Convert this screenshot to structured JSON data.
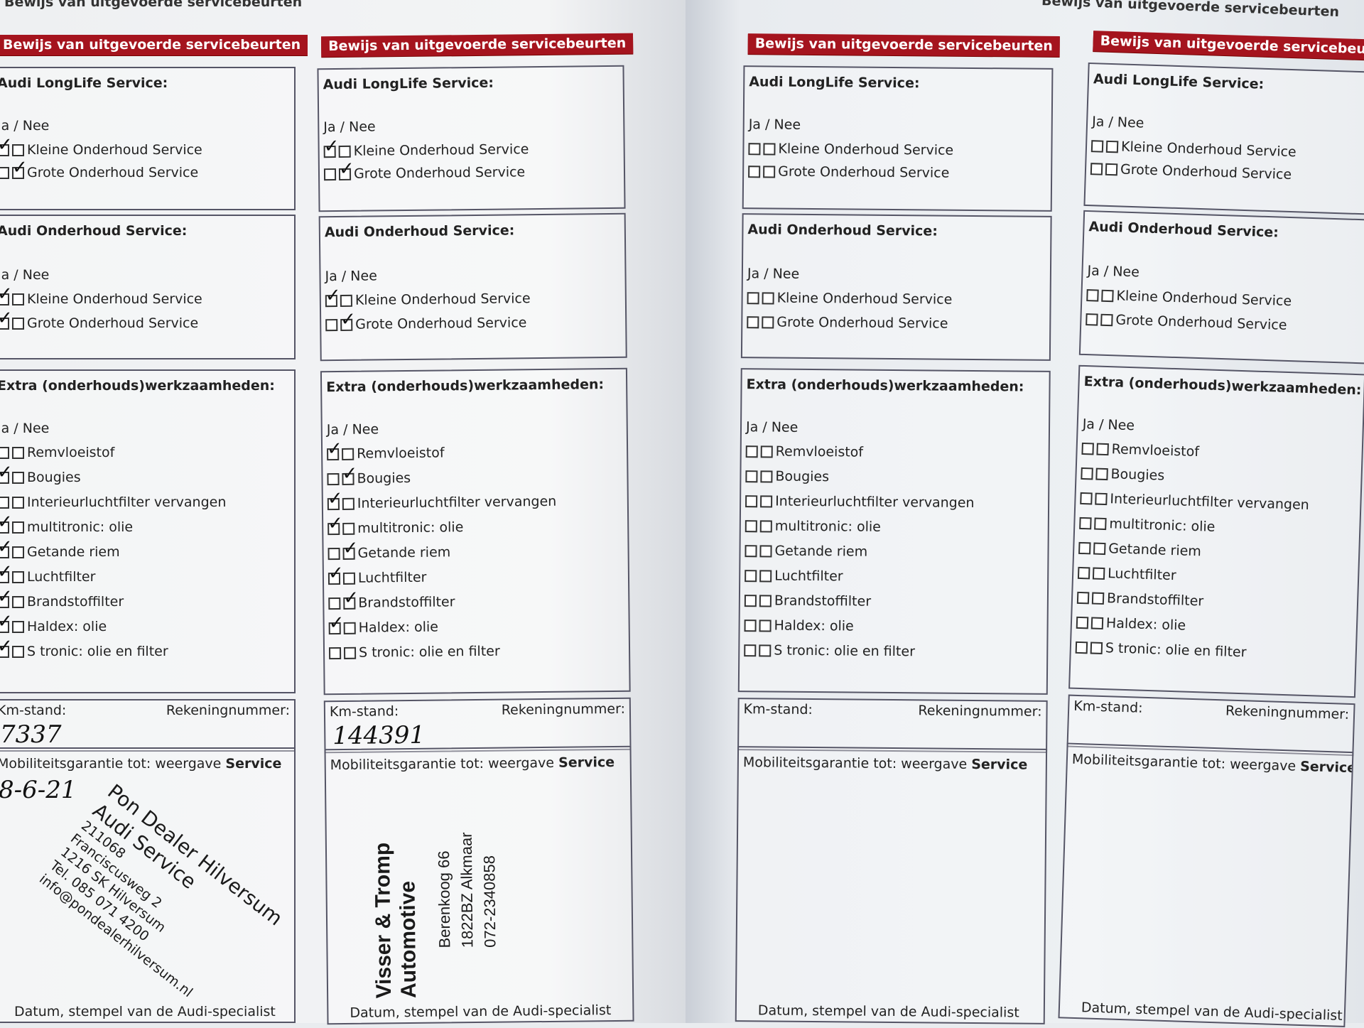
{
  "running_header": "Bewijs van uitgevoerde servicebeurten",
  "labels": {
    "section_header": "Bewijs van uitgevoerde servicebeurten",
    "longlife": "Audi LongLife Service:",
    "onderhoud": "Audi Onderhoud Service:",
    "extra": "Extra (onderhouds)werkzaamheden:",
    "ja_nee": "Ja / Nee",
    "kleine": "Kleine Onderhoud Service",
    "grote": "Grote Onderhoud Service",
    "extra_items": [
      "Remvloeistof",
      "Bougies",
      "Interieurluchtfilter vervangen",
      "multitronic: olie",
      "Getande riem",
      "Luchtfilter",
      "Brandstoffilter",
      "Haldex: olie",
      "S tronic: olie en filter"
    ],
    "km": "Km-stand:",
    "rekening": "Rekeningnummer:",
    "mobiliteit": "Mobiliteitsgarantie tot: weergave",
    "mobiliteit_bold": "Service",
    "datum": "Datum, stempel van de Audi-specialist"
  },
  "pages": [
    {
      "longlife": [
        [
          true,
          false
        ],
        [
          false,
          true
        ]
      ],
      "onderhoud": [
        [
          true,
          false
        ],
        [
          true,
          false
        ]
      ],
      "extra": [
        [
          false,
          false
        ],
        [
          true,
          false
        ],
        [
          false,
          false
        ],
        [
          true,
          false
        ],
        [
          true,
          false
        ],
        [
          true,
          false
        ],
        [
          true,
          false
        ],
        [
          true,
          false
        ],
        [
          true,
          false
        ]
      ],
      "km_handwritten": "7337",
      "date_handwritten": "8-6-21",
      "stamp": [
        "Pon Dealer Hilversum",
        "Audi Service",
        "211068",
        "Franciscusweg 2",
        "1216 SK Hilversum",
        "Tel. 085 071 4200",
        "info@pondealerhilversum.nl"
      ]
    },
    {
      "longlife": [
        [
          true,
          false
        ],
        [
          false,
          true
        ]
      ],
      "onderhoud": [
        [
          true,
          false
        ],
        [
          false,
          true
        ]
      ],
      "extra": [
        [
          true,
          false
        ],
        [
          false,
          true
        ],
        [
          true,
          false
        ],
        [
          true,
          false
        ],
        [
          false,
          true
        ],
        [
          true,
          false
        ],
        [
          false,
          true
        ],
        [
          true,
          false
        ],
        [
          false,
          false
        ]
      ],
      "km_handwritten": "144391",
      "stamp": [
        "Visser & Tromp Automotive",
        "Berenkoog 66",
        "1822BZ Alkmaar",
        "072-2340858"
      ]
    },
    {
      "longlife": [
        [
          false,
          false
        ],
        [
          false,
          false
        ]
      ],
      "onderhoud": [
        [
          false,
          false
        ],
        [
          false,
          false
        ]
      ],
      "extra": [
        [
          false,
          false
        ],
        [
          false,
          false
        ],
        [
          false,
          false
        ],
        [
          false,
          false
        ],
        [
          false,
          false
        ],
        [
          false,
          false
        ],
        [
          false,
          false
        ],
        [
          false,
          false
        ],
        [
          false,
          false
        ]
      ]
    },
    {
      "longlife": [
        [
          false,
          false
        ],
        [
          false,
          false
        ]
      ],
      "onderhoud": [
        [
          false,
          false
        ],
        [
          false,
          false
        ]
      ],
      "extra": [
        [
          false,
          false
        ],
        [
          false,
          false
        ],
        [
          false,
          false
        ],
        [
          false,
          false
        ],
        [
          false,
          false
        ],
        [
          false,
          false
        ],
        [
          false,
          false
        ],
        [
          false,
          false
        ],
        [
          false,
          false
        ]
      ]
    }
  ]
}
